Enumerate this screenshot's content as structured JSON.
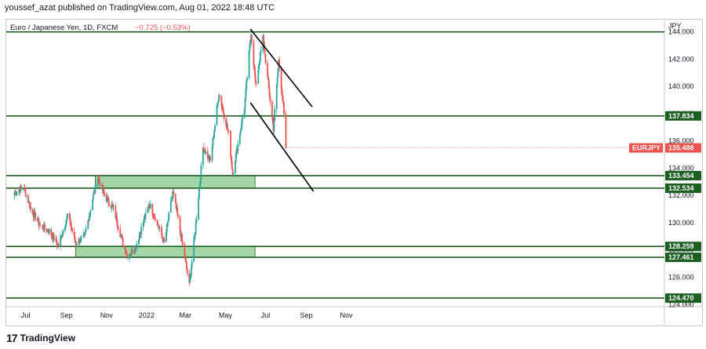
{
  "header": {
    "publish_line": "youssef_azat published on TradingView.com, Aug 01, 2022 18:48 UTC"
  },
  "footer": {
    "brand": "TradingView",
    "logo_glyph": "17"
  },
  "legend": {
    "symbol_desc": "Euro / Japanese Yen, 1D, FXCM",
    "change": "−0.725 (−0.53%)",
    "symbol_label": "EURJPY"
  },
  "colors": {
    "up": "#26a69a",
    "down": "#ef5350",
    "level_line": "#1b5e20",
    "zone_fill": "#a5d6a7",
    "label_bg": "#1b5e20",
    "trend": "#000000",
    "last_price": "#ef5350"
  },
  "chart_data": {
    "type": "candlestick",
    "currency": "JPY",
    "x_tick_labels": [
      "Jul",
      "Sep",
      "Nov",
      "2022",
      "Mar",
      "May",
      "Jul",
      "Sep",
      "Nov"
    ],
    "y_tick_labels": [
      "124.000",
      "126.000",
      "128.000",
      "130.000",
      "132.000",
      "134.000",
      "136.000",
      "138.000",
      "140.000",
      "142.000",
      "144.000"
    ],
    "ylim": [
      123.9,
      144.9
    ],
    "last_price": 135.488,
    "horizontal_levels": [
      144.0,
      137.834,
      133.454,
      132.534,
      128.259,
      127.461,
      124.47
    ],
    "level_labels": [
      "137.834",
      "133.454",
      "132.534",
      "128.259",
      "127.461",
      "124.470"
    ],
    "zones": [
      {
        "from": "2021-10-15",
        "to": "2022-06-15",
        "low": 132.534,
        "high": 133.454
      },
      {
        "from": "2021-09-15",
        "to": "2022-06-15",
        "low": 127.461,
        "high": 128.259
      }
    ],
    "trend_lines": [
      {
        "from": [
          "2022-06-08",
          144.2
        ],
        "to": [
          "2022-09-10",
          138.5
        ]
      },
      {
        "from": [
          "2022-06-08",
          138.8
        ],
        "to": [
          "2022-09-12",
          132.3
        ]
      }
    ],
    "anchors": [
      [
        "2021-06-14",
        132.2
      ],
      [
        "2021-06-28",
        132.6
      ],
      [
        "2021-07-09",
        131.0
      ],
      [
        "2021-07-23",
        129.8
      ],
      [
        "2021-08-06",
        129.4
      ],
      [
        "2021-08-20",
        128.3
      ],
      [
        "2021-09-03",
        130.6
      ],
      [
        "2021-09-15",
        128.5
      ],
      [
        "2021-09-29",
        129.0
      ],
      [
        "2021-10-12",
        132.0
      ],
      [
        "2021-10-19",
        133.3
      ],
      [
        "2021-10-29",
        132.0
      ],
      [
        "2021-11-12",
        131.0
      ],
      [
        "2021-11-26",
        128.5
      ],
      [
        "2021-12-03",
        127.6
      ],
      [
        "2021-12-15",
        128.2
      ],
      [
        "2021-12-31",
        130.6
      ],
      [
        "2022-01-05",
        131.4
      ],
      [
        "2022-01-14",
        130.4
      ],
      [
        "2022-01-28",
        128.5
      ],
      [
        "2022-02-10",
        132.2
      ],
      [
        "2022-02-18",
        130.3
      ],
      [
        "2022-03-01",
        127.2
      ],
      [
        "2022-03-07",
        125.4
      ],
      [
        "2022-03-16",
        129.4
      ],
      [
        "2022-03-28",
        135.5
      ],
      [
        "2022-04-08",
        134.5
      ],
      [
        "2022-04-21",
        139.5
      ],
      [
        "2022-05-06",
        136.5
      ],
      [
        "2022-05-12",
        133.6
      ],
      [
        "2022-05-30",
        138.5
      ],
      [
        "2022-06-09",
        144.0
      ],
      [
        "2022-06-16",
        140.0
      ],
      [
        "2022-06-27",
        143.6
      ],
      [
        "2022-07-05",
        140.2
      ],
      [
        "2022-07-13",
        136.9
      ],
      [
        "2022-07-21",
        141.9
      ],
      [
        "2022-07-28",
        138.6
      ],
      [
        "2022-08-01",
        135.488
      ]
    ]
  }
}
